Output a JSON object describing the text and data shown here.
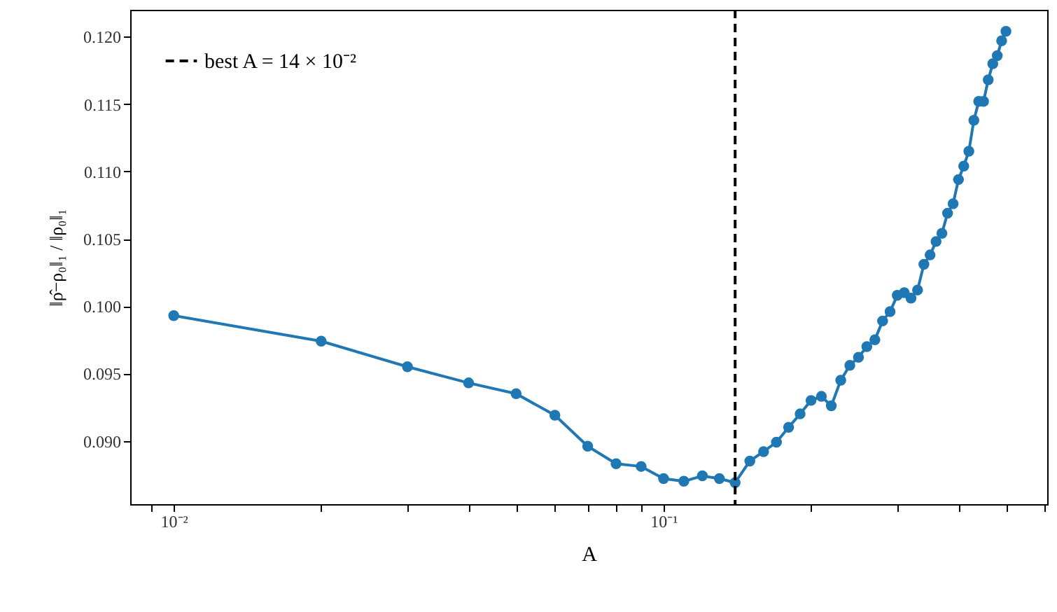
{
  "chart_data": {
    "type": "line",
    "xlabel": "A",
    "ylabel": "‖ρ̂−ρ₀‖₁ / ‖ρ₀‖₁",
    "x": [
      0.01,
      0.02,
      0.03,
      0.04,
      0.05,
      0.06,
      0.07,
      0.08,
      0.09,
      0.1,
      0.11,
      0.12,
      0.13,
      0.14,
      0.15,
      0.16,
      0.17,
      0.18,
      0.19,
      0.2,
      0.21,
      0.22,
      0.23,
      0.24,
      0.25,
      0.26,
      0.27,
      0.28,
      0.29,
      0.3,
      0.31,
      0.32,
      0.33,
      0.34,
      0.35,
      0.36,
      0.37,
      0.38,
      0.39,
      0.4,
      0.41,
      0.42,
      0.43,
      0.44,
      0.45,
      0.46,
      0.47,
      0.48,
      0.49,
      0.5
    ],
    "series": [
      {
        "color": "#1f77b4",
        "values": [
          0.0993,
          0.0974,
          0.0955,
          0.0943,
          0.0935,
          0.0919,
          0.0896,
          0.0883,
          0.0881,
          0.0872,
          0.087,
          0.0874,
          0.0872,
          0.0869,
          0.0885,
          0.0892,
          0.0899,
          0.091,
          0.092,
          0.093,
          0.0933,
          0.0926,
          0.0945,
          0.0956,
          0.0962,
          0.097,
          0.0975,
          0.0989,
          0.0996,
          0.1008,
          0.101,
          0.1006,
          0.1012,
          0.1031,
          0.1038,
          0.1048,
          0.1054,
          0.1069,
          0.1076,
          0.1094,
          0.1104,
          0.1115,
          0.1138,
          0.1152,
          0.1152,
          0.1168,
          0.118,
          0.1186,
          0.1197,
          0.1204
        ]
      }
    ],
    "ref_lines": [
      {
        "axis": "x",
        "value": 0.14,
        "label": "best A = 14 × 10⁻²",
        "color": "#000000",
        "line_style": "dashed"
      }
    ],
    "log": "x",
    "xlim": [
      0.00815,
      0.607
    ],
    "xticks": [
      {
        "value": 0.009,
        "label": null
      },
      {
        "value": 0.01,
        "label": "10⁻²"
      },
      {
        "value": 0.02,
        "label": null
      },
      {
        "value": 0.03,
        "label": null
      },
      {
        "value": 0.04,
        "label": null
      },
      {
        "value": 0.05,
        "label": null
      },
      {
        "value": 0.06,
        "label": null
      },
      {
        "value": 0.07,
        "label": null
      },
      {
        "value": 0.08,
        "label": null
      },
      {
        "value": 0.09,
        "label": null
      },
      {
        "value": 0.1,
        "label": "10⁻¹"
      },
      {
        "value": 0.2,
        "label": null
      },
      {
        "value": 0.3,
        "label": null
      },
      {
        "value": 0.4,
        "label": null
      },
      {
        "value": 0.5,
        "label": null
      },
      {
        "value": 0.6,
        "label": null
      }
    ],
    "ylim": [
      0.0853,
      0.122
    ],
    "yticks": [
      {
        "value": 0.09,
        "label": "0.090"
      },
      {
        "value": 0.095,
        "label": "0.095"
      },
      {
        "value": 0.1,
        "label": "0.100"
      },
      {
        "value": 0.105,
        "label": "0.105"
      },
      {
        "value": 0.11,
        "label": "0.110"
      },
      {
        "value": 0.115,
        "label": "0.115"
      },
      {
        "value": 0.12,
        "label": "0.120"
      }
    ],
    "grid": false,
    "legend": "top left",
    "marker": "circle",
    "line_style": "solid"
  }
}
